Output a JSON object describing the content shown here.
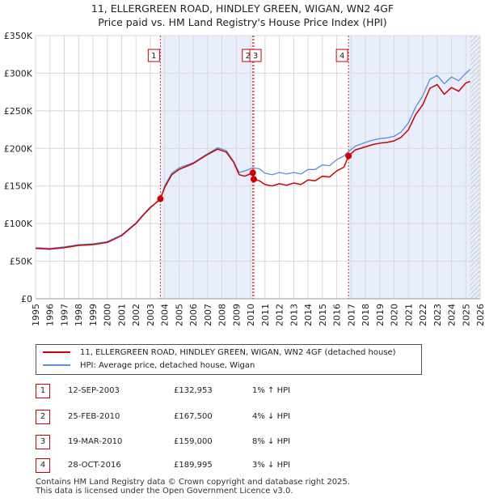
{
  "title_line1": "11, ELLERGREEN ROAD, HINDLEY GREEN, WIGAN, WN2 4GF",
  "title_line2": "Price paid vs. HM Land Registry's House Price Index (HPI)",
  "colors": {
    "price_paid": "#cc0000",
    "hpi": "#5b8fd6",
    "shade": "#e8eefb",
    "grid": "#d8d8d8"
  },
  "chart_data": {
    "type": "line",
    "xlim": [
      1995,
      2026
    ],
    "ylim": [
      0,
      350000
    ],
    "x_ticks": [
      "1995",
      "1996",
      "1997",
      "1998",
      "1999",
      "2000",
      "2001",
      "2002",
      "2003",
      "2004",
      "2005",
      "2006",
      "2007",
      "2008",
      "2009",
      "2010",
      "2011",
      "2012",
      "2013",
      "2014",
      "2015",
      "2016",
      "2017",
      "2018",
      "2019",
      "2020",
      "2021",
      "2022",
      "2023",
      "2024",
      "2025",
      "2026"
    ],
    "y_ticks": [
      {
        "value": 0,
        "label": "£0"
      },
      {
        "value": 50000,
        "label": "£50K"
      },
      {
        "value": 100000,
        "label": "£100K"
      },
      {
        "value": 150000,
        "label": "£150K"
      },
      {
        "value": 200000,
        "label": "£200K"
      },
      {
        "value": 250000,
        "label": "£250K"
      },
      {
        "value": 300000,
        "label": "£300K"
      },
      {
        "value": 350000,
        "label": "£350K"
      }
    ],
    "shaded_ranges": [
      [
        2003.7,
        2010.15
      ],
      [
        2016.82,
        2026
      ]
    ],
    "hatched_after": 2025.3,
    "series": [
      {
        "name": "11, ELLERGREEN ROAD, HINDLEY GREEN, WIGAN, WN2 4GF (detached house)",
        "color": "#cc0000",
        "x": [
          1995,
          1996,
          1997,
          1998,
          1999,
          2000,
          2001,
          2002,
          2002.5,
          2003,
          2003.7,
          2004,
          2004.5,
          2005,
          2006,
          2007,
          2007.7,
          2008.3,
          2008.8,
          2009.2,
          2009.6,
          2010.15,
          2010.22,
          2010.6,
          2011,
          2011.5,
          2012,
          2012.5,
          2013,
          2013.5,
          2014,
          2014.5,
          2015,
          2015.5,
          2016,
          2016.5,
          2016.82,
          2017.3,
          2018,
          2018.5,
          2019,
          2019.5,
          2020,
          2020.5,
          2021,
          2021.5,
          2022,
          2022.5,
          2023,
          2023.5,
          2024,
          2024.5,
          2025,
          2025.3
        ],
        "y": [
          67000,
          66000,
          68000,
          71000,
          72000,
          75000,
          84000,
          100000,
          111000,
          121000,
          132953,
          148000,
          165000,
          172000,
          180000,
          192000,
          199000,
          195000,
          182000,
          165000,
          163000,
          167500,
          159000,
          157000,
          152000,
          150000,
          153000,
          151000,
          154000,
          152000,
          158000,
          157000,
          163000,
          162000,
          170000,
          175000,
          189995,
          198000,
          202000,
          205000,
          207000,
          208000,
          210000,
          215000,
          225000,
          245000,
          258000,
          280000,
          285000,
          272000,
          281000,
          276000,
          287000,
          289000
        ]
      },
      {
        "name": "HPI: Average price, detached house, Wigan",
        "color": "#5b8fd6",
        "x": [
          1995,
          1996,
          1997,
          1998,
          1999,
          2000,
          2001,
          2002,
          2002.5,
          2003,
          2003.7,
          2004,
          2004.5,
          2005,
          2006,
          2007,
          2007.7,
          2008.3,
          2008.8,
          2009.2,
          2009.6,
          2010.15,
          2010.6,
          2011,
          2011.5,
          2012,
          2012.5,
          2013,
          2013.5,
          2014,
          2014.5,
          2015,
          2015.5,
          2016,
          2016.5,
          2016.82,
          2017.3,
          2018,
          2018.5,
          2019,
          2019.5,
          2020,
          2020.5,
          2021,
          2021.5,
          2022,
          2022.5,
          2023,
          2023.5,
          2024,
          2024.5,
          2025,
          2025.3
        ],
        "y": [
          68000,
          67000,
          69000,
          72000,
          73000,
          76000,
          85000,
          101000,
          112000,
          122000,
          131600,
          150000,
          167000,
          174000,
          181000,
          193000,
          201000,
          197000,
          183000,
          168000,
          170000,
          174000,
          173000,
          167000,
          165000,
          168000,
          166000,
          168000,
          166000,
          172000,
          172000,
          178000,
          177000,
          185000,
          190000,
          195800,
          203000,
          208000,
          211000,
          213000,
          214000,
          216000,
          222000,
          234000,
          255000,
          270000,
          292000,
          297000,
          286000,
          295000,
          290000,
          300000,
          305000
        ]
      }
    ],
    "transactions": [
      {
        "id": "1",
        "date": "12-SEP-2003",
        "price": "£132,953",
        "hpi": "1% ↑ HPI",
        "x": 2003.7,
        "y": 132953
      },
      {
        "id": "2",
        "date": "25-FEB-2010",
        "price": "£167,500",
        "hpi": "4% ↓ HPI",
        "x": 2010.15,
        "y": 167500
      },
      {
        "id": "3",
        "date": "19-MAR-2010",
        "price": "£159,000",
        "hpi": "8% ↓ HPI",
        "x": 2010.22,
        "y": 159000
      },
      {
        "id": "4",
        "date": "28-OCT-2016",
        "price": "£189,995",
        "hpi": "3% ↓ HPI",
        "x": 2016.82,
        "y": 189995
      }
    ],
    "markers_top": [
      {
        "label": "1",
        "x": 2003.7
      },
      {
        "label": "2",
        "x": 2010.15
      },
      {
        "label": "3",
        "x": 2010.22
      },
      {
        "label": "4",
        "x": 2016.82
      }
    ]
  },
  "footer_line1": "Contains HM Land Registry data © Crown copyright and database right 2025.",
  "footer_line2": "This data is licensed under the Open Government Licence v3.0."
}
